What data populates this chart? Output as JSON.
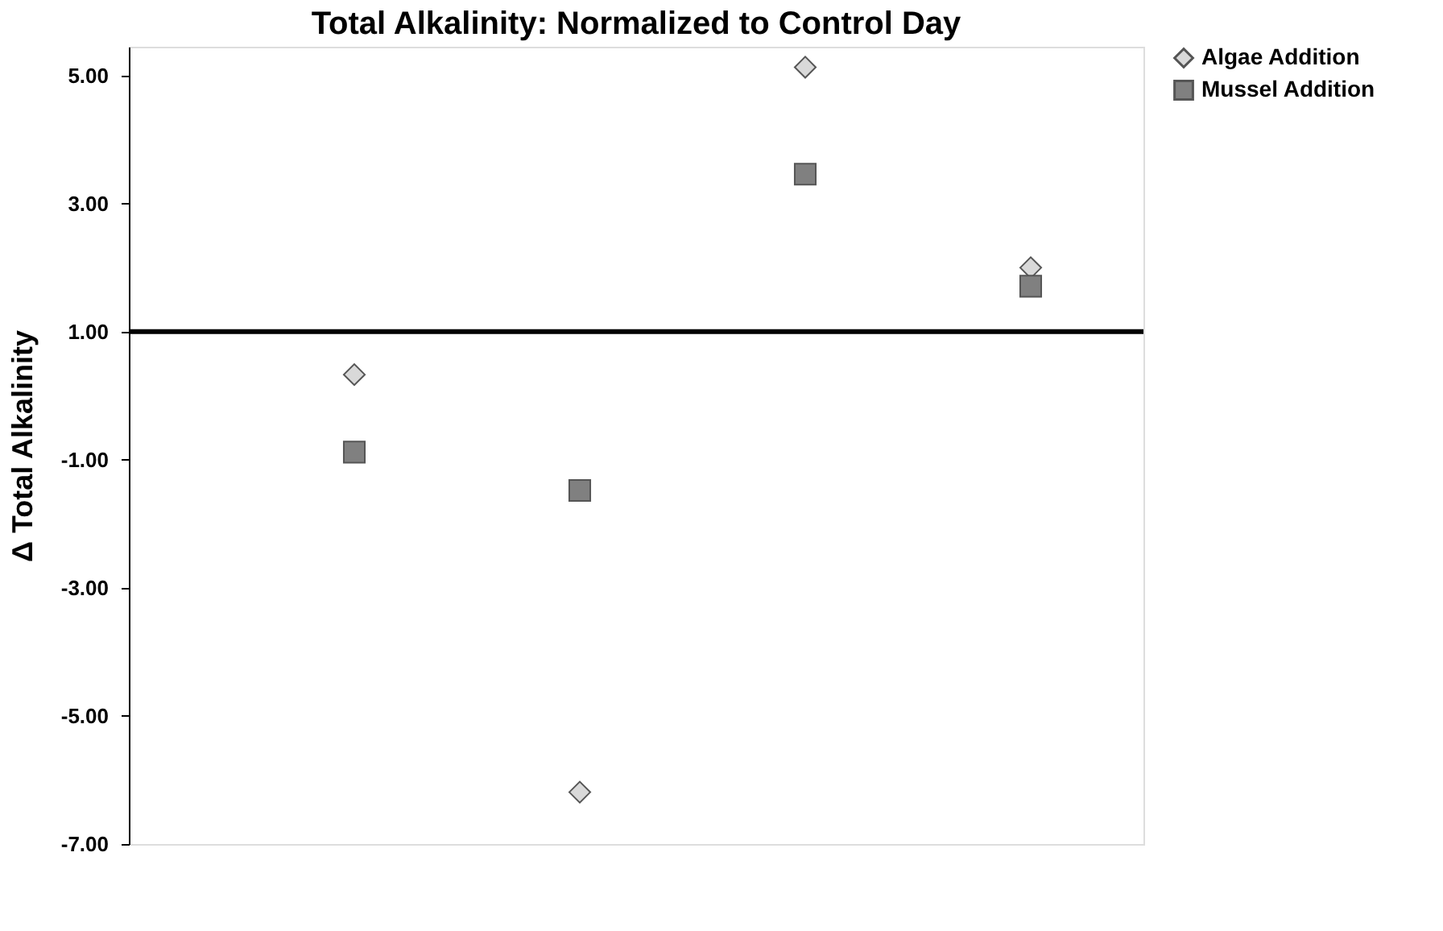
{
  "chart_data": {
    "type": "scatter",
    "title": "Total Alkalinity: Normalized to Control Day",
    "ylabel": "Δ Total Alkalinity",
    "categories": [
      null,
      null,
      null,
      null
    ],
    "series": [
      {
        "name": "Algae Addition",
        "color": "#d9d9d9",
        "marker": "diamond",
        "values": [
          0.33,
          -6.19,
          5.13,
          2.0
        ]
      },
      {
        "name": "Mussel Addition",
        "color": "#808080",
        "marker": "square",
        "values": [
          -0.88,
          -1.48,
          3.46,
          1.71
        ]
      }
    ],
    "ylim": [
      -7,
      5.45
    ],
    "yticks": [
      {
        "value": -7,
        "label": "-7.00"
      },
      {
        "value": -5,
        "label": "-5.00"
      },
      {
        "value": -3,
        "label": "-3.00"
      },
      {
        "value": -1,
        "label": "-1.00"
      },
      {
        "value": 1,
        "label": "1.00"
      },
      {
        "value": 3,
        "label": "3.00"
      },
      {
        "value": 5,
        "label": "5.00"
      }
    ],
    "ref_lines": [
      {
        "axis": "y",
        "value": 1,
        "label": null,
        "color": "#000000",
        "line_style": "solid"
      }
    ],
    "tick_labels": "y",
    "grid": false,
    "legend": "right"
  }
}
